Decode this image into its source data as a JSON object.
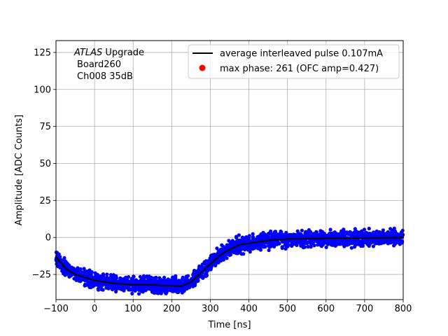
{
  "chart_data": {
    "type": "scatter",
    "xlabel": "Time [ns]",
    "ylabel": "Amplitude [ADC Counts]",
    "xlim": [
      -100,
      800
    ],
    "ylim": [
      -42,
      133
    ],
    "xticks": [
      -100,
      0,
      100,
      200,
      300,
      400,
      500,
      600,
      700,
      800
    ],
    "xtick_labels": [
      "−100",
      "0",
      "100",
      "200",
      "300",
      "400",
      "500",
      "600",
      "700",
      "800"
    ],
    "yticks": [
      -25,
      0,
      25,
      50,
      75,
      100,
      125
    ],
    "ytick_labels": [
      "−25",
      "0",
      "25",
      "50",
      "75",
      "100",
      "125"
    ],
    "grid": true,
    "legend_position": "top-right",
    "annotation": {
      "line1_italic": "ATLAS",
      "line1_rest": " Upgrade",
      "line2": "Board260",
      "line3": "Ch008 35dB"
    },
    "series": [
      {
        "name": "average interleaved pulse 0.107mA",
        "style": "line",
        "color": "#000000",
        "x": [
          -100,
          -75,
          -50,
          -25,
          0,
          25,
          50,
          75,
          100,
          125,
          150,
          175,
          200,
          225,
          250,
          275,
          300,
          325,
          350,
          375,
          400,
          450,
          500,
          550,
          600,
          650,
          700,
          750,
          800
        ],
        "y": [
          -13,
          -21,
          -25,
          -27,
          -29,
          -30,
          -31,
          -31.5,
          -32,
          -32,
          -32,
          -32.5,
          -32.5,
          -33,
          -30,
          -24,
          -18,
          -12,
          -8,
          -5,
          -4,
          -2,
          -1,
          -1,
          -0.5,
          -0.5,
          -0.3,
          -0.2,
          -0.1
        ]
      },
      {
        "name": "",
        "style": "scatter",
        "color": "#0000ff",
        "spread": 7
      }
    ],
    "marker": {
      "name": "max phase: 261 (OFC amp=0.427)",
      "color": "#ff0000"
    }
  }
}
